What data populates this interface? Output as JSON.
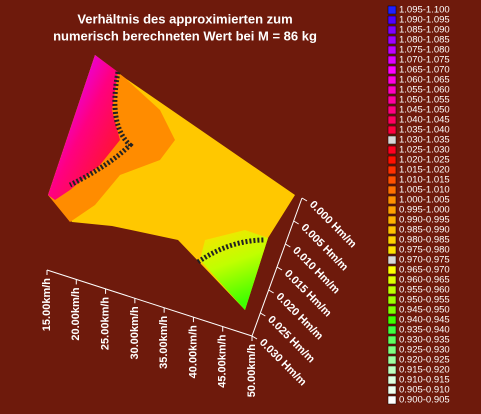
{
  "chart_data": {
    "type": "surface3d",
    "title": [
      "Verhältnis des approximierten zum",
      "numerisch berechneten Wert bei M = 86 kg"
    ],
    "x_categories": [
      "15.00km/h",
      "20.00km/h",
      "25.00km/h",
      "30.00km/h",
      "35.00km/h",
      "40.00km/h",
      "45.00km/h",
      "50.00km/h"
    ],
    "y_categories": [
      "0.000 Hm/m",
      "0.005 Hm/m",
      "0.010 Hm/m",
      "0.015 Hm/m",
      "0.020 Hm/m",
      "0.025 Hm/m",
      "0.030 Hm/m"
    ],
    "legend": [
      {
        "label": "1.095-1.100",
        "color": "#2020ff"
      },
      {
        "label": "1.090-1.095",
        "color": "#5000ff"
      },
      {
        "label": "1.085-1.090",
        "color": "#8000ff"
      },
      {
        "label": "1.080-1.085",
        "color": "#a000ff"
      },
      {
        "label": "1.075-1.080",
        "color": "#c000ff"
      },
      {
        "label": "1.070-1.075",
        "color": "#e000ff"
      },
      {
        "label": "1.065-1.070",
        "color": "#ff00ff"
      },
      {
        "label": "1.060-1.065",
        "color": "#ff00e0"
      },
      {
        "label": "1.055-1.060",
        "color": "#ff00c0"
      },
      {
        "label": "1.050-1.055",
        "color": "#ff00a0"
      },
      {
        "label": "1.045-1.050",
        "color": "#ff0080"
      },
      {
        "label": "1.040-1.045",
        "color": "#ff0060"
      },
      {
        "label": "1.035-1.040",
        "color": "#ff0040"
      },
      {
        "label": "1.030-1.035",
        "color": "#d8d8d8"
      },
      {
        "label": "1.025-1.030",
        "color": "#ff0020"
      },
      {
        "label": "1.020-1.025",
        "color": "#ff1000"
      },
      {
        "label": "1.015-1.020",
        "color": "#ff3000"
      },
      {
        "label": "1.010-1.015",
        "color": "#ff5000"
      },
      {
        "label": "1.005-1.010",
        "color": "#ff7000"
      },
      {
        "label": "1.000-1.005",
        "color": "#ff9000"
      },
      {
        "label": "0.995-1.000",
        "color": "#ffa000"
      },
      {
        "label": "0.990-0.995",
        "color": "#ffb000"
      },
      {
        "label": "0.985-0.990",
        "color": "#ffc000"
      },
      {
        "label": "0.980-0.985",
        "color": "#ffd000"
      },
      {
        "label": "0.975-0.980",
        "color": "#ffe000"
      },
      {
        "label": "0.970-0.975",
        "color": "#d8d8d8"
      },
      {
        "label": "0.965-0.970",
        "color": "#ffff00"
      },
      {
        "label": "0.960-0.965",
        "color": "#e0ff00"
      },
      {
        "label": "0.955-0.960",
        "color": "#c0ff00"
      },
      {
        "label": "0.950-0.955",
        "color": "#a0ff00"
      },
      {
        "label": "0.945-0.950",
        "color": "#80ff00"
      },
      {
        "label": "0.940-0.945",
        "color": "#40ff00"
      },
      {
        "label": "0.935-0.940",
        "color": "#40ff40"
      },
      {
        "label": "0.930-0.935",
        "color": "#60ff60"
      },
      {
        "label": "0.925-0.930",
        "color": "#80ff80"
      },
      {
        "label": "0.920-0.925",
        "color": "#a0ffa0"
      },
      {
        "label": "0.915-0.920",
        "color": "#c0ffc0"
      },
      {
        "label": "0.910-0.915",
        "color": "#e0ffe0"
      },
      {
        "label": "0.905-0.910",
        "color": "#f0fff0"
      },
      {
        "label": "0.900-0.905",
        "color": "#ffffff"
      }
    ]
  }
}
